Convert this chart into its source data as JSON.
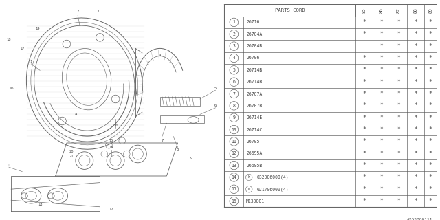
{
  "diagram_code": "A263B00111",
  "bg_color": "#ffffff",
  "header": [
    "PARTS CORD",
    "85",
    "86",
    "87",
    "88",
    "89"
  ],
  "rows": [
    [
      "1",
      "26716",
      true,
      true,
      true,
      true,
      true
    ],
    [
      "2",
      "26704A",
      true,
      true,
      true,
      true,
      true
    ],
    [
      "3",
      "26704B",
      false,
      true,
      true,
      true,
      true
    ],
    [
      "4",
      "26706",
      true,
      true,
      true,
      true,
      true
    ],
    [
      "5",
      "26714B",
      true,
      true,
      true,
      true,
      true
    ],
    [
      "6",
      "26714B",
      true,
      true,
      true,
      true,
      true
    ],
    [
      "7",
      "26707A",
      true,
      true,
      true,
      true,
      true
    ],
    [
      "8",
      "26707B",
      true,
      true,
      true,
      true,
      true
    ],
    [
      "9",
      "26714E",
      true,
      true,
      true,
      true,
      true
    ],
    [
      "10",
      "26714C",
      true,
      true,
      true,
      true,
      true
    ],
    [
      "11",
      "26705",
      true,
      true,
      true,
      true,
      true
    ],
    [
      "12",
      "26695A",
      true,
      true,
      true,
      true,
      true
    ],
    [
      "13",
      "26695B",
      true,
      true,
      true,
      true,
      true
    ],
    [
      "14",
      "W032006000(4)",
      true,
      true,
      true,
      true,
      true
    ],
    [
      "15",
      "N021706000(4)",
      true,
      true,
      true,
      true,
      true
    ],
    [
      "16",
      "M130001",
      true,
      true,
      true,
      true,
      true
    ]
  ],
  "line_color": "#666666",
  "text_color": "#444444",
  "font_size": 5.2,
  "table_font": "monospace"
}
